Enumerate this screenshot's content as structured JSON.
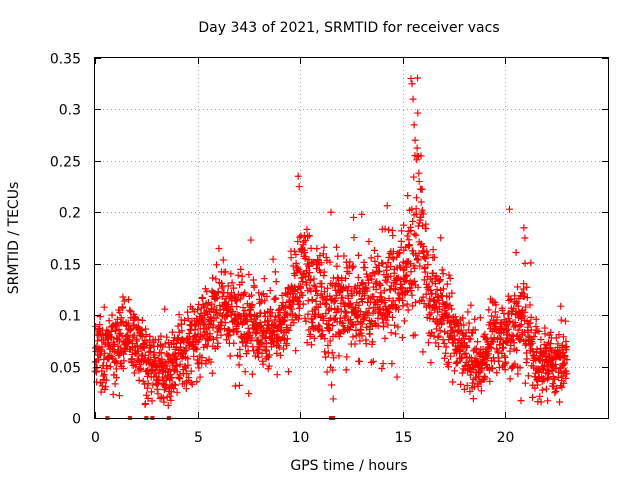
{
  "chart_data": {
    "type": "scatter",
    "title": "Day 343 of 2021, SRMTID for receiver vacs",
    "xlabel": "GPS time / hours",
    "ylabel": "SRMTID / TECUs",
    "xlim": [
      0,
      25
    ],
    "ylim": [
      0,
      0.35
    ],
    "x_ticks": [
      0,
      5,
      10,
      15,
      20
    ],
    "x_tick_labels": [
      "0",
      "5",
      "10",
      "15",
      "20"
    ],
    "y_ticks": [
      0,
      0.05,
      0.1,
      0.15,
      0.2,
      0.25,
      0.3,
      0.35
    ],
    "y_tick_labels": [
      "0",
      "0.05",
      "0.1",
      "0.15",
      "0.2",
      "0.25",
      "0.3",
      "0.35"
    ],
    "grid": true,
    "marker": "plus",
    "color": "#ff0000",
    "series": [
      {
        "name": "SRMTID",
        "x_range": [
          0,
          23
        ],
        "x_step": 0.01,
        "seed": 343,
        "trend": [
          [
            0.0,
            0.065,
            0.02
          ],
          [
            0.5,
            0.065,
            0.02
          ],
          [
            1.0,
            0.07,
            0.02
          ],
          [
            1.5,
            0.085,
            0.02
          ],
          [
            2.0,
            0.07,
            0.022
          ],
          [
            2.5,
            0.06,
            0.02
          ],
          [
            3.0,
            0.05,
            0.018
          ],
          [
            3.5,
            0.05,
            0.02
          ],
          [
            4.0,
            0.06,
            0.02
          ],
          [
            4.5,
            0.07,
            0.022
          ],
          [
            5.0,
            0.08,
            0.022
          ],
          [
            5.5,
            0.09,
            0.025
          ],
          [
            6.0,
            0.105,
            0.025
          ],
          [
            6.5,
            0.1,
            0.025
          ],
          [
            7.0,
            0.095,
            0.025
          ],
          [
            7.5,
            0.09,
            0.025
          ],
          [
            8.0,
            0.085,
            0.025
          ],
          [
            8.5,
            0.085,
            0.025
          ],
          [
            9.0,
            0.085,
            0.025
          ],
          [
            9.5,
            0.11,
            0.03
          ],
          [
            10.0,
            0.14,
            0.03
          ],
          [
            10.5,
            0.12,
            0.03
          ],
          [
            11.0,
            0.11,
            0.03
          ],
          [
            11.5,
            0.1,
            0.03
          ],
          [
            12.0,
            0.11,
            0.03
          ],
          [
            12.5,
            0.11,
            0.03
          ],
          [
            13.0,
            0.11,
            0.03
          ],
          [
            13.5,
            0.115,
            0.03
          ],
          [
            14.0,
            0.12,
            0.03
          ],
          [
            14.5,
            0.125,
            0.03
          ],
          [
            15.0,
            0.14,
            0.03
          ],
          [
            15.5,
            0.16,
            0.05
          ],
          [
            15.8,
            0.2,
            0.06
          ],
          [
            16.2,
            0.12,
            0.03
          ],
          [
            16.5,
            0.11,
            0.025
          ],
          [
            17.0,
            0.1,
            0.025
          ],
          [
            17.5,
            0.08,
            0.025
          ],
          [
            18.0,
            0.065,
            0.022
          ],
          [
            18.5,
            0.055,
            0.02
          ],
          [
            19.0,
            0.06,
            0.02
          ],
          [
            19.5,
            0.08,
            0.025
          ],
          [
            20.0,
            0.07,
            0.022
          ],
          [
            20.5,
            0.09,
            0.03
          ],
          [
            21.0,
            0.09,
            0.03
          ],
          [
            21.5,
            0.055,
            0.02
          ],
          [
            22.0,
            0.05,
            0.018
          ],
          [
            22.5,
            0.055,
            0.02
          ],
          [
            23.0,
            0.055,
            0.02
          ]
        ],
        "notable_points": [
          {
            "x": 15.4,
            "y": 0.33
          },
          {
            "x": 15.45,
            "y": 0.325
          },
          {
            "x": 15.5,
            "y": 0.31
          },
          {
            "x": 15.55,
            "y": 0.285
          },
          {
            "x": 15.6,
            "y": 0.27
          },
          {
            "x": 15.7,
            "y": 0.255
          },
          {
            "x": 15.8,
            "y": 0.23
          },
          {
            "x": 15.9,
            "y": 0.21
          },
          {
            "x": 9.9,
            "y": 0.235
          },
          {
            "x": 9.95,
            "y": 0.225
          },
          {
            "x": 20.2,
            "y": 0.203
          },
          {
            "x": 20.9,
            "y": 0.185
          },
          {
            "x": 20.95,
            "y": 0.175
          },
          {
            "x": 11.5,
            "y": 0.2
          },
          {
            "x": 12.6,
            "y": 0.195
          },
          {
            "x": 13.0,
            "y": 0.198
          },
          {
            "x": 7.6,
            "y": 0.173
          }
        ],
        "zero_points": [
          0.6,
          1.7,
          2.5,
          2.8,
          3.6,
          11.5,
          11.6
        ]
      }
    ]
  }
}
